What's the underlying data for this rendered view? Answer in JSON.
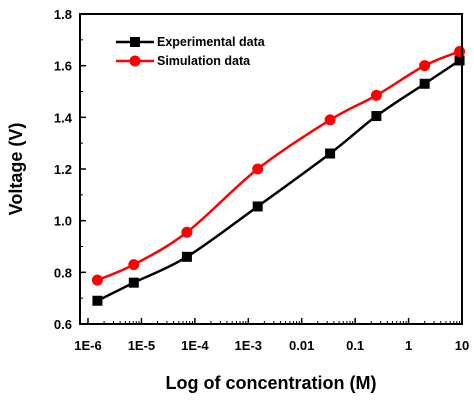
{
  "chart_data": {
    "type": "line",
    "title": "",
    "xlabel": "Log of concentration (M)",
    "ylabel": "Voltage (V)",
    "x_scale": "log",
    "xlim": [
      1e-06,
      10
    ],
    "ylim": [
      0.6,
      1.8
    ],
    "x_ticks": [
      1e-06,
      1e-05,
      0.0001,
      0.001,
      0.01,
      0.1,
      1,
      10
    ],
    "x_tick_labels": [
      "1E-6",
      "1E-5",
      "1E-4",
      "1E-3",
      "0.01",
      "0.1",
      "1",
      "10"
    ],
    "y_ticks": [
      0.6,
      0.8,
      1.0,
      1.2,
      1.4,
      1.6,
      1.8
    ],
    "y_tick_labels": [
      "0.6",
      "0.8",
      "1.0",
      "1.2",
      "1.4",
      "1.6",
      "1.8"
    ],
    "grid": false,
    "legend_position": "top-center",
    "series": [
      {
        "name": "Experimental data",
        "color": "#000000",
        "marker": "square",
        "x": [
          1.5e-06,
          7.2e-06,
          7.1e-05,
          0.0015,
          0.034,
          0.25,
          2.0,
          9.0
        ],
        "y": [
          0.69,
          0.76,
          0.86,
          1.055,
          1.26,
          1.405,
          1.53,
          1.62
        ]
      },
      {
        "name": "Simulation data",
        "color": "#ff0000",
        "marker": "circle",
        "x": [
          1.5e-06,
          7.2e-06,
          7.1e-05,
          0.0015,
          0.034,
          0.25,
          2.0,
          9.0
        ],
        "y": [
          0.77,
          0.83,
          0.955,
          1.2,
          1.39,
          1.485,
          1.6,
          1.655
        ]
      }
    ]
  }
}
